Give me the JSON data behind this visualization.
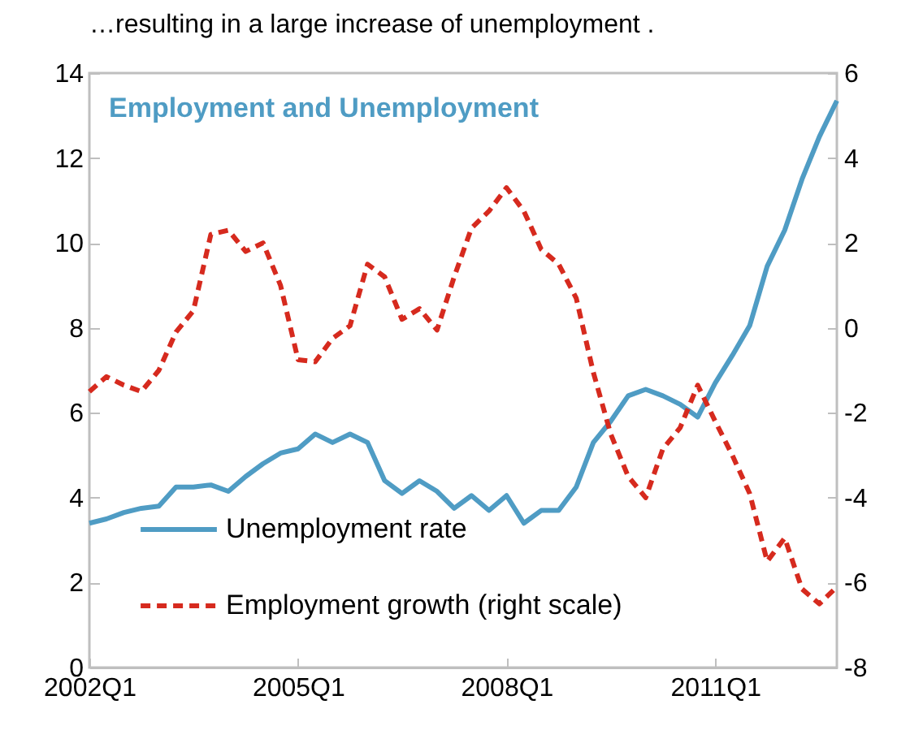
{
  "chart_data": {
    "type": "line",
    "title": "…resulting in a large increase of unemployment .",
    "subtitle": "Employment and Unemployment",
    "x": [
      "2002-01",
      "2002-04",
      "2002-07",
      "2002-10",
      "2003-01",
      "2003-04",
      "2003-07",
      "2003-10",
      "2004-01",
      "2004-04",
      "2004-07",
      "2004-10",
      "2005-01",
      "2005-04",
      "2005-07",
      "2005-10",
      "2006-01",
      "2006-04",
      "2006-07",
      "2006-10",
      "2007-01",
      "2007-04",
      "2007-07",
      "2007-10",
      "2008-01",
      "2008-04",
      "2008-07",
      "2008-10",
      "2009-01",
      "2009-04",
      "2009-07",
      "2009-10",
      "2010-01",
      "2010-04",
      "2010-07",
      "2010-10",
      "2011-01",
      "2011-04",
      "2011-07",
      "2011-10",
      "2012-01",
      "2012-04",
      "2012-07",
      "2012-10"
    ],
    "series": [
      {
        "name": "Unemployment rate",
        "color": "#4f9cc4",
        "line_style": "solid",
        "values": [
          3.4,
          3.5,
          3.65,
          3.75,
          3.8,
          4.25,
          4.25,
          4.3,
          4.15,
          4.5,
          4.8,
          5.05,
          5.15,
          5.5,
          5.3,
          5.5,
          5.3,
          4.4,
          4.1,
          4.4,
          4.15,
          3.75,
          4.05,
          3.7,
          4.05,
          3.4,
          3.7,
          3.7,
          4.25,
          5.3,
          5.8,
          6.4,
          6.55,
          6.4,
          6.2,
          5.9,
          6.7,
          7.35,
          8.05,
          9.45,
          10.3,
          11.5,
          12.5,
          13.35
        ]
      },
      {
        "name": "Employment growth (right scale)",
        "color": "#d62a1e",
        "line_style": "dashed",
        "axis": "y2",
        "values": [
          -1.5,
          -1.15,
          -1.35,
          -1.5,
          -1.0,
          -0.1,
          0.4,
          2.2,
          2.3,
          1.8,
          2.0,
          1.0,
          -0.75,
          -0.8,
          -0.25,
          0.05,
          1.5,
          1.2,
          0.2,
          0.45,
          -0.05,
          1.2,
          2.35,
          2.75,
          3.3,
          2.75,
          1.85,
          1.5,
          0.7,
          -1.05,
          -2.5,
          -3.5,
          -4.0,
          -2.85,
          -2.35,
          -1.35,
          -2.2,
          -3.0,
          -3.9,
          -5.5,
          -4.95,
          -6.15,
          -6.5,
          -6.1
        ]
      }
    ],
    "xlim": [
      "2002-01",
      "2012-10"
    ],
    "xticks": [
      {
        "value": "2002-01",
        "label": "2002Q1"
      },
      {
        "value": "2005-01",
        "label": "2005Q1"
      },
      {
        "value": "2008-01",
        "label": "2008Q1"
      },
      {
        "value": "2011-01",
        "label": "2011Q1"
      }
    ],
    "ylim": [
      0,
      14
    ],
    "yticks": [
      0,
      2,
      4,
      6,
      8,
      10,
      12,
      14
    ],
    "y2lim": [
      -8,
      6
    ],
    "y2ticks": [
      -8,
      -6,
      -4,
      -2,
      0,
      2,
      4,
      6
    ],
    "grid": false,
    "legend": "bottom left",
    "marker": "none"
  }
}
